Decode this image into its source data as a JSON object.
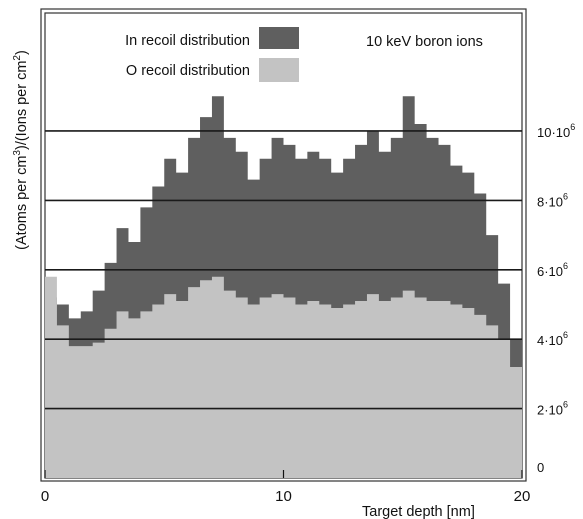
{
  "chart_data": {
    "type": "area",
    "title": "",
    "annotation": "10 keV boron ions",
    "xlabel": "Target depth [nm]",
    "ylabel_parts": [
      "(Atoms per cm",
      "3",
      ")/(Ions per cm",
      "2",
      ")"
    ],
    "xlim": [
      0,
      20
    ],
    "ylim": [
      0,
      13400000
    ],
    "grid": "horizontal",
    "legend_position": "top-left",
    "x_ticks": [
      {
        "value": 0,
        "label": "0"
      },
      {
        "value": 10,
        "label": "10"
      },
      {
        "value": 20,
        "label": "20"
      }
    ],
    "y_ticks": [
      {
        "value": 0,
        "base": "0",
        "exp": ""
      },
      {
        "value": 2000000,
        "base": "2·10",
        "exp": "6"
      },
      {
        "value": 4000000,
        "base": "4·10",
        "exp": "6"
      },
      {
        "value": 6000000,
        "base": "6·10",
        "exp": "6"
      },
      {
        "value": 8000000,
        "base": "8·10",
        "exp": "6"
      },
      {
        "value": 10000000,
        "base": "10·10",
        "exp": "6"
      }
    ],
    "series": [
      {
        "name": "In recoil distribution",
        "color": "#5f5f5f",
        "x": [
          0,
          0.5,
          1,
          1.5,
          2,
          2.5,
          3,
          3.5,
          4,
          4.5,
          5,
          5.5,
          6,
          6.5,
          7,
          7.5,
          8,
          8.5,
          9,
          9.5,
          10,
          10.5,
          11,
          11.5,
          12,
          12.5,
          13,
          13.5,
          14,
          14.5,
          15,
          15.5,
          16,
          16.5,
          17,
          17.5,
          18,
          18.5,
          19,
          19.5,
          20
        ],
        "values": [
          5200000,
          5000000,
          4600000,
          4800000,
          5400000,
          6200000,
          7200000,
          6800000,
          7800000,
          8400000,
          9200000,
          8800000,
          9800000,
          10400000,
          11000000,
          9800000,
          9400000,
          8600000,
          9200000,
          9800000,
          9600000,
          9200000,
          9400000,
          9200000,
          8800000,
          9200000,
          9600000,
          10000000,
          9400000,
          9800000,
          11000000,
          10200000,
          9800000,
          9600000,
          9000000,
          8800000,
          8200000,
          7000000,
          5600000,
          4000000,
          2200000
        ]
      },
      {
        "name": "O recoil distribution",
        "color": "#c3c3c3",
        "x": [
          0,
          0.5,
          1,
          1.5,
          2,
          2.5,
          3,
          3.5,
          4,
          4.5,
          5,
          5.5,
          6,
          6.5,
          7,
          7.5,
          8,
          8.5,
          9,
          9.5,
          10,
          10.5,
          11,
          11.5,
          12,
          12.5,
          13,
          13.5,
          14,
          14.5,
          15,
          15.5,
          16,
          16.5,
          17,
          17.5,
          18,
          18.5,
          19,
          19.5,
          20
        ],
        "values": [
          5800000,
          4400000,
          3800000,
          3800000,
          3900000,
          4300000,
          4800000,
          4600000,
          4800000,
          5000000,
          5300000,
          5100000,
          5500000,
          5700000,
          5800000,
          5400000,
          5200000,
          5000000,
          5200000,
          5300000,
          5200000,
          5000000,
          5100000,
          5000000,
          4900000,
          5000000,
          5100000,
          5300000,
          5100000,
          5200000,
          5400000,
          5200000,
          5100000,
          5100000,
          5000000,
          4900000,
          4700000,
          4400000,
          4000000,
          3200000,
          1900000
        ]
      }
    ]
  }
}
